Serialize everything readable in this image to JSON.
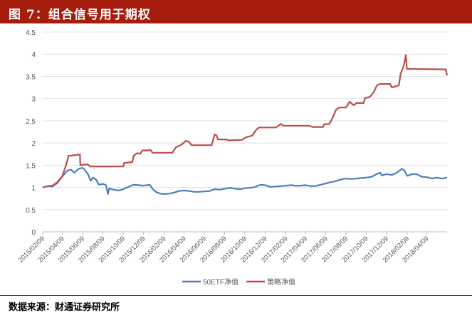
{
  "header": {
    "title": "图 7：组合信号用于期权"
  },
  "source": {
    "label": "数据来源：",
    "text": "财通证券研究所"
  },
  "colors": {
    "header_bg": "#a61d0e",
    "series_50etf": "#4a7ebb",
    "series_strategy": "#be4b48"
  },
  "chart_data": {
    "type": "line",
    "title": "",
    "xlabel": "",
    "ylabel": "",
    "ylim": [
      0,
      4.5
    ],
    "yticks": [
      "0",
      "0.5",
      "1",
      "1.5",
      "2",
      "2.5",
      "3",
      "3.5",
      "4",
      "4.5"
    ],
    "xlim": [
      "2015-02-09",
      "2018-06-09"
    ],
    "xticks": [
      "2015/02/09",
      "2015/04/09",
      "2015/06/09",
      "2015/08/09",
      "2015/10/09",
      "2015/12/09",
      "2016/02/09",
      "2016/04/09",
      "2016/06/09",
      "2016/08/09",
      "2016/10/09",
      "2016/12/09",
      "2017/02/09",
      "2017/04/09",
      "2017/06/09",
      "2017/08/09",
      "2017/10/09",
      "2017/12/09",
      "2018/02/09",
      "2018/04/09"
    ],
    "legend_position": "bottom",
    "grid": "y",
    "series": [
      {
        "name": "50ETF净值",
        "color": "#4a7ebb",
        "points": [
          [
            "2015-02-09",
            1.0
          ],
          [
            "2015-02-25",
            1.03
          ],
          [
            "2015-03-10",
            1.02
          ],
          [
            "2015-03-25",
            1.1
          ],
          [
            "2015-04-09",
            1.25
          ],
          [
            "2015-04-25",
            1.38
          ],
          [
            "2015-05-05",
            1.4
          ],
          [
            "2015-05-15",
            1.33
          ],
          [
            "2015-05-28",
            1.42
          ],
          [
            "2015-06-09",
            1.44
          ],
          [
            "2015-06-15",
            1.4
          ],
          [
            "2015-06-25",
            1.3
          ],
          [
            "2015-07-03",
            1.15
          ],
          [
            "2015-07-10",
            1.22
          ],
          [
            "2015-07-20",
            1.17
          ],
          [
            "2015-07-28",
            1.06
          ],
          [
            "2015-08-09",
            1.08
          ],
          [
            "2015-08-18",
            1.05
          ],
          [
            "2015-08-24",
            0.85
          ],
          [
            "2015-08-28",
            0.98
          ],
          [
            "2015-09-09",
            0.95
          ],
          [
            "2015-09-25",
            0.93
          ],
          [
            "2015-10-09",
            0.96
          ],
          [
            "2015-10-25",
            1.01
          ],
          [
            "2015-11-09",
            1.06
          ],
          [
            "2015-11-25",
            1.05
          ],
          [
            "2015-12-09",
            1.04
          ],
          [
            "2015-12-28",
            1.06
          ],
          [
            "2016-01-05",
            0.97
          ],
          [
            "2016-01-15",
            0.9
          ],
          [
            "2016-01-28",
            0.86
          ],
          [
            "2016-02-09",
            0.85
          ],
          [
            "2016-02-25",
            0.86
          ],
          [
            "2016-03-09",
            0.88
          ],
          [
            "2016-03-25",
            0.92
          ],
          [
            "2016-04-09",
            0.93
          ],
          [
            "2016-04-25",
            0.92
          ],
          [
            "2016-05-09",
            0.9
          ],
          [
            "2016-05-25",
            0.9
          ],
          [
            "2016-06-09",
            0.91
          ],
          [
            "2016-06-25",
            0.92
          ],
          [
            "2016-07-09",
            0.96
          ],
          [
            "2016-07-25",
            0.95
          ],
          [
            "2016-08-09",
            0.97
          ],
          [
            "2016-08-25",
            0.99
          ],
          [
            "2016-09-09",
            0.97
          ],
          [
            "2016-09-25",
            0.96
          ],
          [
            "2016-10-09",
            0.98
          ],
          [
            "2016-10-25",
            0.99
          ],
          [
            "2016-11-09",
            1.01
          ],
          [
            "2016-11-25",
            1.06
          ],
          [
            "2016-12-09",
            1.05
          ],
          [
            "2016-12-25",
            1.01
          ],
          [
            "2017-01-09",
            1.02
          ],
          [
            "2017-01-25",
            1.03
          ],
          [
            "2017-02-09",
            1.04
          ],
          [
            "2017-02-25",
            1.05
          ],
          [
            "2017-03-09",
            1.04
          ],
          [
            "2017-03-25",
            1.04
          ],
          [
            "2017-04-09",
            1.05
          ],
          [
            "2017-04-25",
            1.03
          ],
          [
            "2017-05-09",
            1.03
          ],
          [
            "2017-05-25",
            1.06
          ],
          [
            "2017-06-09",
            1.09
          ],
          [
            "2017-06-25",
            1.12
          ],
          [
            "2017-07-09",
            1.14
          ],
          [
            "2017-07-25",
            1.18
          ],
          [
            "2017-08-09",
            1.2
          ],
          [
            "2017-08-25",
            1.19
          ],
          [
            "2017-09-09",
            1.2
          ],
          [
            "2017-09-25",
            1.21
          ],
          [
            "2017-10-09",
            1.22
          ],
          [
            "2017-10-25",
            1.24
          ],
          [
            "2017-11-09",
            1.3
          ],
          [
            "2017-11-20",
            1.33
          ],
          [
            "2017-11-25",
            1.27
          ],
          [
            "2017-12-09",
            1.3
          ],
          [
            "2017-12-25",
            1.28
          ],
          [
            "2018-01-09",
            1.33
          ],
          [
            "2018-01-24",
            1.42
          ],
          [
            "2018-02-01",
            1.38
          ],
          [
            "2018-02-09",
            1.26
          ],
          [
            "2018-02-25",
            1.3
          ],
          [
            "2018-03-09",
            1.3
          ],
          [
            "2018-03-25",
            1.24
          ],
          [
            "2018-04-09",
            1.23
          ],
          [
            "2018-04-25",
            1.2
          ],
          [
            "2018-05-09",
            1.22
          ],
          [
            "2018-05-25",
            1.2
          ],
          [
            "2018-06-09",
            1.22
          ]
        ]
      },
      {
        "name": "策略净值",
        "color": "#be4b48",
        "points": [
          [
            "2015-02-09",
            1.0
          ],
          [
            "2015-02-25",
            1.03
          ],
          [
            "2015-03-10",
            1.04
          ],
          [
            "2015-03-25",
            1.12
          ],
          [
            "2015-04-09",
            1.25
          ],
          [
            "2015-04-20",
            1.5
          ],
          [
            "2015-04-28",
            1.71
          ],
          [
            "2015-05-20",
            1.73
          ],
          [
            "2015-06-01",
            1.74
          ],
          [
            "2015-06-02",
            1.5
          ],
          [
            "2015-06-25",
            1.52
          ],
          [
            "2015-07-01",
            1.47
          ],
          [
            "2015-09-10",
            1.47
          ],
          [
            "2015-10-09",
            1.47
          ],
          [
            "2015-10-12",
            1.55
          ],
          [
            "2015-11-05",
            1.57
          ],
          [
            "2015-11-10",
            1.72
          ],
          [
            "2015-11-20",
            1.77
          ],
          [
            "2015-11-30",
            1.76
          ],
          [
            "2015-12-05",
            1.83
          ],
          [
            "2015-12-31",
            1.84
          ],
          [
            "2016-01-05",
            1.78
          ],
          [
            "2016-03-05",
            1.78
          ],
          [
            "2016-03-15",
            1.9
          ],
          [
            "2016-04-01",
            1.96
          ],
          [
            "2016-04-15",
            2.05
          ],
          [
            "2016-04-25",
            2.02
          ],
          [
            "2016-05-01",
            1.95
          ],
          [
            "2016-07-01",
            1.95
          ],
          [
            "2016-07-05",
            2.06
          ],
          [
            "2016-07-10",
            2.19
          ],
          [
            "2016-07-15",
            2.18
          ],
          [
            "2016-07-20",
            2.08
          ],
          [
            "2016-08-15",
            2.08
          ],
          [
            "2016-08-20",
            2.06
          ],
          [
            "2016-10-01",
            2.07
          ],
          [
            "2016-10-10",
            2.12
          ],
          [
            "2016-11-01",
            2.17
          ],
          [
            "2016-11-10",
            2.28
          ],
          [
            "2016-11-20",
            2.35
          ],
          [
            "2017-01-10",
            2.35
          ],
          [
            "2017-01-20",
            2.4
          ],
          [
            "2017-01-25",
            2.43
          ],
          [
            "2017-02-01",
            2.39
          ],
          [
            "2017-04-20",
            2.39
          ],
          [
            "2017-05-01",
            2.36
          ],
          [
            "2017-06-01",
            2.36
          ],
          [
            "2017-06-05",
            2.42
          ],
          [
            "2017-06-20",
            2.43
          ],
          [
            "2017-06-30",
            2.57
          ],
          [
            "2017-07-10",
            2.75
          ],
          [
            "2017-07-20",
            2.8
          ],
          [
            "2017-08-09",
            2.8
          ],
          [
            "2017-08-20",
            2.93
          ],
          [
            "2017-09-01",
            2.85
          ],
          [
            "2017-09-10",
            2.9
          ],
          [
            "2017-10-01",
            2.9
          ],
          [
            "2017-10-05",
            3.01
          ],
          [
            "2017-10-20",
            3.04
          ],
          [
            "2017-11-01",
            3.15
          ],
          [
            "2017-11-10",
            3.3
          ],
          [
            "2017-11-20",
            3.33
          ],
          [
            "2017-12-20",
            3.33
          ],
          [
            "2017-12-25",
            3.25
          ],
          [
            "2018-01-15",
            3.3
          ],
          [
            "2018-01-20",
            3.55
          ],
          [
            "2018-01-30",
            3.75
          ],
          [
            "2018-02-05",
            3.98
          ],
          [
            "2018-02-08",
            3.67
          ],
          [
            "2018-05-15",
            3.66
          ],
          [
            "2018-06-05",
            3.66
          ],
          [
            "2018-06-09",
            3.52
          ]
        ]
      }
    ]
  }
}
